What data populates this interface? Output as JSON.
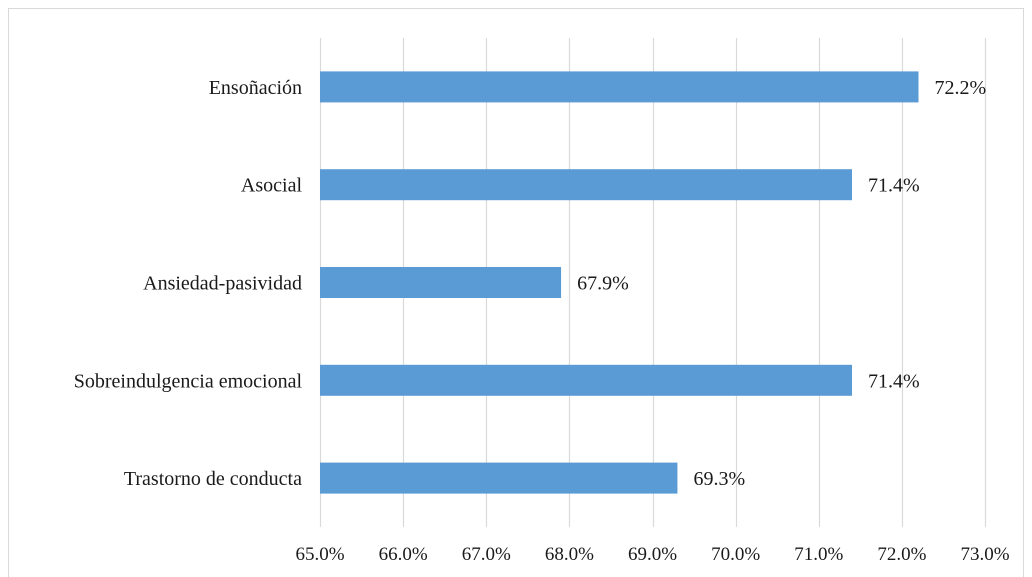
{
  "chart_data": {
    "type": "bar",
    "orientation": "horizontal",
    "categories": [
      "Ensoñación",
      "Asocial",
      "Ansiedad-pasividad",
      "Sobreindulgencia emocional",
      "Trastorno de conducta"
    ],
    "values": [
      72.2,
      71.4,
      67.9,
      71.4,
      69.3
    ],
    "data_labels": [
      "72.2%",
      "71.4%",
      "67.9%",
      "71.4%",
      "69.3%"
    ],
    "xlim": [
      65.0,
      73.0
    ],
    "x_ticks": [
      "65.0%",
      "66.0%",
      "67.0%",
      "68.0%",
      "69.0%",
      "70.0%",
      "71.0%",
      "72.0%",
      "73.0%"
    ],
    "grid": "vertical",
    "legend": "none",
    "bar_color": "#5b9bd5",
    "grid_color": "#d9d9d9"
  }
}
